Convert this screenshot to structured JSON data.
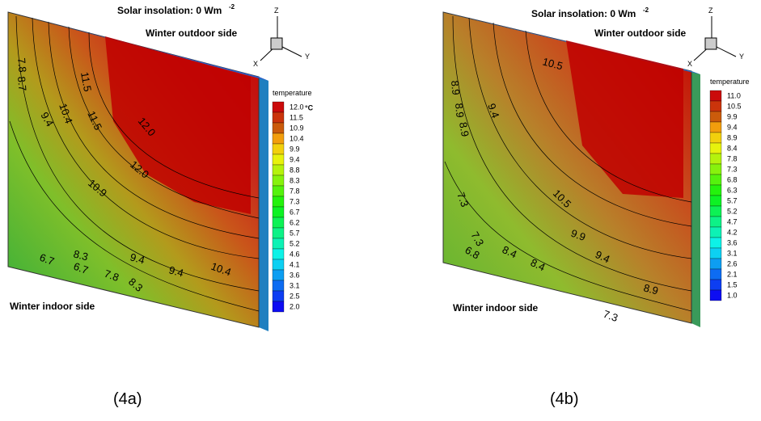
{
  "panels": [
    {
      "label": "(4a)",
      "solar": "Solar insolation: 0 Wm",
      "solar_sup": "-2",
      "outdoor": "Winter outdoor side",
      "indoor": "Winter indoor side",
      "axes": {
        "z": "Z",
        "y": "Y",
        "x": "X"
      },
      "legend_title": "temperature",
      "legend_unit": "°C",
      "legend": [
        "12.0",
        "11.5",
        "10.9",
        "10.4",
        "9.9",
        "9.4",
        "8.8",
        "8.3",
        "7.8",
        "7.3",
        "6.7",
        "6.2",
        "5.7",
        "5.2",
        "4.6",
        "4.1",
        "3.6",
        "3.1",
        "2.5",
        "2.0"
      ],
      "contour_labels": [
        "12.0",
        "12.0",
        "11.5",
        "11.5",
        "10.4",
        "9.4",
        "10.9",
        "8.3",
        "9.4",
        "9.4",
        "6.7",
        "6.7",
        "7.8",
        "8.3",
        "10.4",
        "7.8",
        "8.7"
      ]
    },
    {
      "label": "(4b)",
      "solar": "Solar insolation: 0 Wm",
      "solar_sup": "-2",
      "outdoor": "Winter outdoor side",
      "indoor": "Winter indoor side",
      "axes": {
        "z": "Z",
        "y": "Y",
        "x": "X"
      },
      "legend_title": "temperature",
      "legend": [
        "11.0",
        "10.5",
        "9.9",
        "9.4",
        "8.9",
        "8.4",
        "7.8",
        "7.3",
        "6.8",
        "6.3",
        "5.7",
        "5.2",
        "4.7",
        "4.2",
        "3.6",
        "3.1",
        "2.6",
        "2.1",
        "1.5",
        "1.0"
      ],
      "contour_labels": [
        "10.5",
        "8.9",
        "8.9",
        "9.4",
        "8.9",
        "10.5",
        "9.9",
        "9.4",
        "8.4",
        "8.4",
        "8.9",
        "7.3",
        "7.3",
        "7.3",
        "6.8"
      ]
    }
  ]
}
